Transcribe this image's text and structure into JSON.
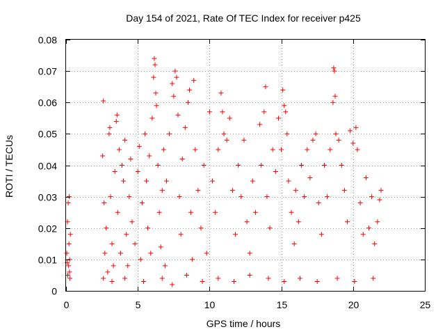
{
  "chart_data": {
    "type": "scatter",
    "title": "Day 154 of 2021, Rate Of TEC Index for receiver p425",
    "xlabel": "GPS time / hours",
    "ylabel": "ROTI / TECUs",
    "xlim": [
      0,
      25
    ],
    "ylim": [
      0,
      0.08
    ],
    "x_ticks": [
      "0",
      "5",
      "10",
      "15",
      "20",
      "25"
    ],
    "y_ticks": [
      "0",
      "0.01",
      "0.02",
      "0.03",
      "0.04",
      "0.05",
      "0.06",
      "0.07",
      "0.08"
    ],
    "grid": true,
    "legend": "none",
    "marker": "plus",
    "series_color": "#ff0000",
    "series": [
      {
        "points": [
          [
            0.05,
            0.012
          ],
          [
            0.1,
            0.022
          ],
          [
            0.12,
            0.005
          ],
          [
            0.15,
            0.028
          ],
          [
            0.18,
            0.008
          ],
          [
            0.2,
            0.015
          ],
          [
            0.22,
            0.03
          ],
          [
            0.25,
            0.01
          ],
          [
            0.27,
            0.004
          ],
          [
            0.3,
            0.018
          ],
          [
            0.08,
            0.009
          ],
          [
            0.24,
            0.006
          ],
          [
            2.55,
            0.043
          ],
          [
            2.6,
            0.0605
          ],
          [
            2.65,
            0.028
          ],
          [
            2.7,
            0.012
          ],
          [
            2.8,
            0.02
          ],
          [
            2.9,
            0.006
          ],
          [
            3.0,
            0.05
          ],
          [
            3.05,
            0.052
          ],
          [
            3.1,
            0.03
          ],
          [
            3.2,
            0.015
          ],
          [
            3.3,
            0.008
          ],
          [
            3.4,
            0.038
          ],
          [
            3.5,
            0.054
          ],
          [
            3.55,
            0.056
          ],
          [
            3.6,
            0.025
          ],
          [
            3.7,
            0.045
          ],
          [
            3.8,
            0.012
          ],
          [
            3.9,
            0.04
          ],
          [
            4.0,
            0.035
          ],
          [
            4.1,
            0.048
          ],
          [
            4.2,
            0.018
          ],
          [
            4.3,
            0.008
          ],
          [
            4.4,
            0.03
          ],
          [
            4.5,
            0.042
          ],
          [
            4.6,
            0.022
          ],
          [
            4.8,
            0.015
          ],
          [
            5.0,
            0.038
          ],
          [
            5.1,
            0.046
          ],
          [
            5.2,
            0.01
          ],
          [
            5.3,
            0.028
          ],
          [
            5.5,
            0.05
          ],
          [
            5.6,
            0.035
          ],
          [
            5.7,
            0.02
          ],
          [
            5.8,
            0.043
          ],
          [
            5.9,
            0.012
          ],
          [
            6.0,
            0.055
          ],
          [
            6.1,
            0.068
          ],
          [
            6.15,
            0.074
          ],
          [
            6.2,
            0.072
          ],
          [
            6.25,
            0.063
          ],
          [
            6.3,
            0.059
          ],
          [
            6.4,
            0.04
          ],
          [
            6.5,
            0.025
          ],
          [
            6.6,
            0.014
          ],
          [
            6.7,
            0.032
          ],
          [
            6.8,
            0.045
          ],
          [
            6.9,
            0.008
          ],
          [
            7.0,
            0.035
          ],
          [
            7.2,
            0.05
          ],
          [
            7.4,
            0.066
          ],
          [
            7.5,
            0.062
          ],
          [
            7.6,
            0.07
          ],
          [
            7.7,
            0.068
          ],
          [
            7.8,
            0.056
          ],
          [
            7.9,
            0.03
          ],
          [
            8.0,
            0.018
          ],
          [
            8.1,
            0.042
          ],
          [
            8.3,
            0.052
          ],
          [
            8.5,
            0.06
          ],
          [
            8.6,
            0.064
          ],
          [
            8.7,
            0.025
          ],
          [
            8.8,
            0.01
          ],
          [
            8.9,
            0.067
          ],
          [
            9.0,
            0.045
          ],
          [
            9.2,
            0.032
          ],
          [
            9.4,
            0.02
          ],
          [
            9.6,
            0.04
          ],
          [
            9.8,
            0.012
          ],
          [
            10.0,
            0.057
          ],
          [
            10.2,
            0.035
          ],
          [
            10.4,
            0.025
          ],
          [
            10.6,
            0.045
          ],
          [
            10.8,
            0.063
          ],
          [
            10.9,
            0.057
          ],
          [
            11.0,
            0.05
          ],
          [
            11.2,
            0.048
          ],
          [
            11.4,
            0.055
          ],
          [
            11.6,
            0.032
          ],
          [
            11.8,
            0.018
          ],
          [
            12.0,
            0.04
          ],
          [
            12.2,
            0.03
          ],
          [
            12.4,
            0.048
          ],
          [
            12.6,
            0.022
          ],
          [
            12.8,
            0.012
          ],
          [
            13.0,
            0.035
          ],
          [
            13.2,
            0.025
          ],
          [
            13.5,
            0.053
          ],
          [
            13.6,
            0.04
          ],
          [
            13.8,
            0.057
          ],
          [
            13.9,
            0.065
          ],
          [
            14.0,
            0.03
          ],
          [
            14.2,
            0.02
          ],
          [
            14.4,
            0.045
          ],
          [
            14.6,
            0.038
          ],
          [
            14.8,
            0.055
          ],
          [
            15.0,
            0.045
          ],
          [
            15.1,
            0.064
          ],
          [
            15.2,
            0.059
          ],
          [
            15.3,
            0.057
          ],
          [
            15.4,
            0.05
          ],
          [
            15.5,
            0.035
          ],
          [
            15.7,
            0.025
          ],
          [
            15.9,
            0.015
          ],
          [
            16.0,
            0.032
          ],
          [
            16.2,
            0.022
          ],
          [
            16.4,
            0.04
          ],
          [
            16.6,
            0.03
          ],
          [
            16.8,
            0.045
          ],
          [
            17.0,
            0.036
          ],
          [
            17.2,
            0.048
          ],
          [
            17.4,
            0.05
          ],
          [
            17.6,
            0.028
          ],
          [
            17.8,
            0.018
          ],
          [
            18.0,
            0.04
          ],
          [
            18.2,
            0.03
          ],
          [
            18.4,
            0.045
          ],
          [
            18.6,
            0.06
          ],
          [
            18.65,
            0.071
          ],
          [
            18.7,
            0.07
          ],
          [
            18.75,
            0.062
          ],
          [
            18.8,
            0.05
          ],
          [
            19.0,
            0.048
          ],
          [
            19.2,
            0.04
          ],
          [
            19.4,
            0.032
          ],
          [
            19.6,
            0.022
          ],
          [
            19.8,
            0.051
          ],
          [
            20.0,
            0.047
          ],
          [
            20.2,
            0.052
          ],
          [
            20.3,
            0.045
          ],
          [
            20.5,
            0.028
          ],
          [
            20.7,
            0.018
          ],
          [
            20.9,
            0.036
          ],
          [
            21.1,
            0.02
          ],
          [
            21.3,
            0.03
          ],
          [
            21.5,
            0.015
          ],
          [
            21.7,
            0.022
          ],
          [
            21.85,
            0.029
          ],
          [
            21.95,
            0.032
          ],
          [
            2.6,
            0.004
          ],
          [
            3.2,
            0.003
          ],
          [
            4.1,
            0.004
          ],
          [
            5.4,
            0.003
          ],
          [
            6.7,
            0.004
          ],
          [
            7.4,
            0.002
          ],
          [
            8.4,
            0.005
          ],
          [
            9.5,
            0.003
          ],
          [
            10.6,
            0.004
          ],
          [
            11.7,
            0.003
          ],
          [
            12.8,
            0.005
          ],
          [
            14.1,
            0.004
          ],
          [
            15.2,
            0.003
          ],
          [
            16.3,
            0.004
          ],
          [
            17.5,
            0.003
          ],
          [
            18.9,
            0.004
          ],
          [
            20.1,
            0.003
          ],
          [
            21.4,
            0.004
          ]
        ]
      }
    ]
  }
}
